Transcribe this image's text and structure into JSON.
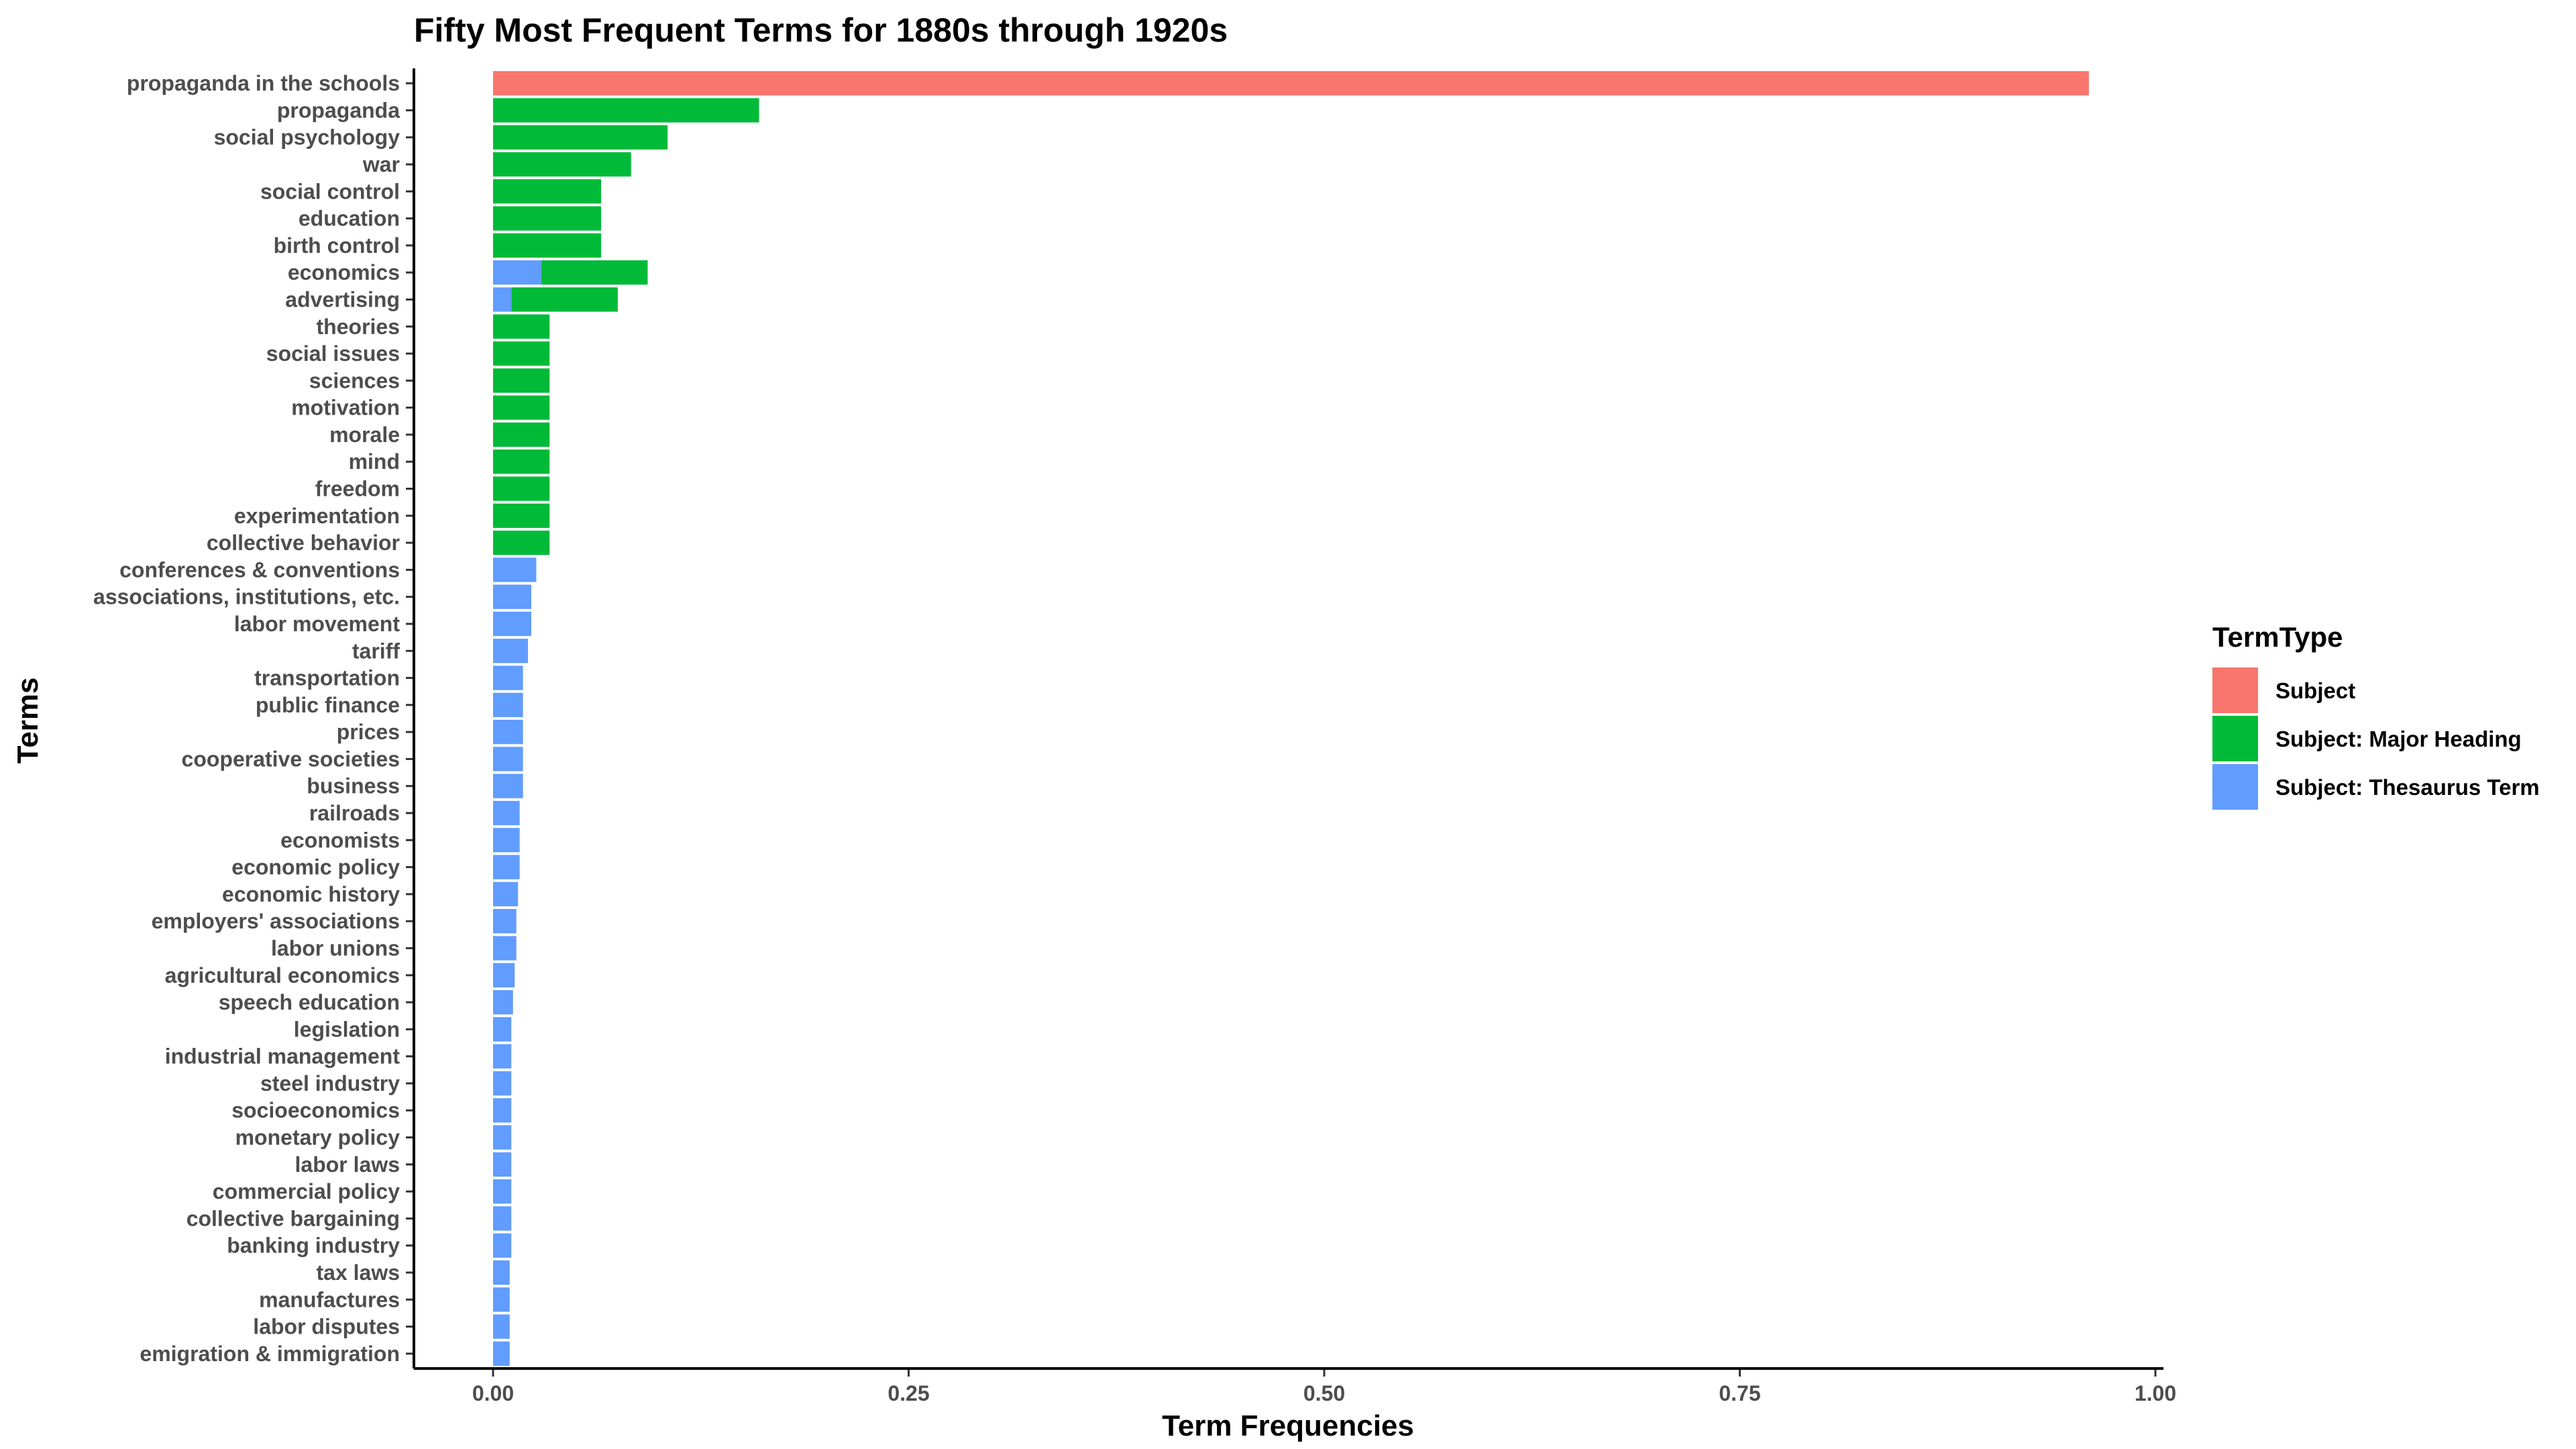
{
  "chart_data": {
    "type": "bar",
    "orientation": "horizontal",
    "stacked": true,
    "title": "Fifty Most Frequent Terms for 1880s through 1920s",
    "xlabel": "Term Frequencies",
    "ylabel": "Terms",
    "xlim": [
      0,
      1
    ],
    "x_ticks": [
      "0.00",
      "0.25",
      "0.50",
      "0.75",
      "1.00"
    ],
    "x_tick_values": [
      0,
      0.25,
      0.5,
      0.75,
      1.0
    ],
    "grid": false,
    "legend_position": "right",
    "legend": {
      "title": "TermType",
      "entries": [
        "Subject",
        "Subject: Major Heading",
        "Subject: Thesaurus Term"
      ]
    },
    "colors": {
      "Subject": "#F8766D",
      "Subject: Major Heading": "#00BA38",
      "Subject: Thesaurus Term": "#619CFF"
    },
    "categories": [
      "propaganda in the schools",
      "propaganda",
      "social psychology",
      "war",
      "social control",
      "education",
      "birth control",
      "economics",
      "advertising",
      "theories",
      "social issues",
      "sciences",
      "motivation",
      "morale",
      "mind",
      "freedom",
      "experimentation",
      "collective behavior",
      "conferences & conventions",
      "associations, institutions, etc.",
      "labor movement",
      "tariff",
      "transportation",
      "public finance",
      "prices",
      "cooperative societies",
      "business",
      "railroads",
      "economists",
      "economic policy",
      "economic history",
      "employers' associations",
      "labor unions",
      "agricultural economics",
      "speech education",
      "legislation",
      "industrial management",
      "steel industry",
      "socioeconomics",
      "monetary policy",
      "labor laws",
      "commercial policy",
      "collective bargaining",
      "banking industry",
      "tax laws",
      "manufactures",
      "labor disputes",
      "emigration & immigration"
    ],
    "series": [
      {
        "name": "Subject: Thesaurus Term",
        "values": [
          0,
          0,
          0,
          0,
          0,
          0,
          0,
          0.029,
          0.011,
          0,
          0,
          0,
          0,
          0,
          0,
          0,
          0,
          0,
          0.026,
          0.023,
          0.023,
          0.021,
          0.018,
          0.018,
          0.018,
          0.018,
          0.018,
          0.016,
          0.016,
          0.016,
          0.015,
          0.014,
          0.014,
          0.013,
          0.012,
          0.011,
          0.011,
          0.011,
          0.011,
          0.011,
          0.011,
          0.011,
          0.011,
          0.011,
          0.01,
          0.01,
          0.01,
          0.01
        ]
      },
      {
        "name": "Subject: Major Heading",
        "values": [
          0,
          0.16,
          0.105,
          0.083,
          0.065,
          0.065,
          0.065,
          0.064,
          0.064,
          0.034,
          0.034,
          0.034,
          0.034,
          0.034,
          0.034,
          0.034,
          0.034,
          0.034,
          0,
          0,
          0,
          0,
          0,
          0,
          0,
          0,
          0,
          0,
          0,
          0,
          0,
          0,
          0,
          0,
          0,
          0,
          0,
          0,
          0,
          0,
          0,
          0,
          0,
          0,
          0,
          0,
          0,
          0
        ]
      },
      {
        "name": "Subject",
        "values": [
          0.96,
          0,
          0,
          0,
          0,
          0,
          0,
          0,
          0,
          0,
          0,
          0,
          0,
          0,
          0,
          0,
          0,
          0,
          0,
          0,
          0,
          0,
          0,
          0,
          0,
          0,
          0,
          0,
          0,
          0,
          0,
          0,
          0,
          0,
          0,
          0,
          0,
          0,
          0,
          0,
          0,
          0,
          0,
          0,
          0,
          0,
          0,
          0
        ]
      }
    ]
  }
}
